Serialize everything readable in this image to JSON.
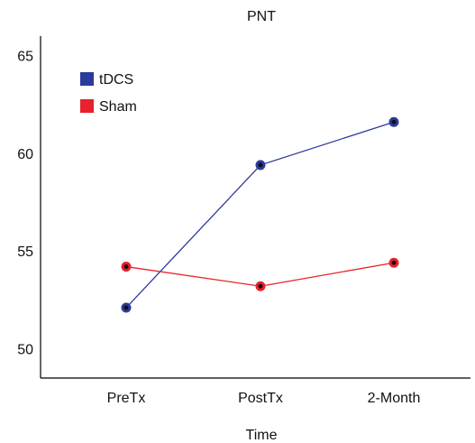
{
  "chart_data": {
    "type": "line",
    "title": "PNT",
    "xlabel": "Time",
    "ylabel": "",
    "categories": [
      "PreTx",
      "PostTx",
      "2-Month"
    ],
    "ylim": [
      48.5,
      66
    ],
    "yticks": [
      50,
      55,
      60,
      65
    ],
    "grid": false,
    "legend_position": "top-left",
    "series": [
      {
        "name": "tDCS",
        "color": "#2b3a9c",
        "values": [
          52.1,
          59.4,
          61.6
        ]
      },
      {
        "name": "Sham",
        "color": "#e8212b",
        "values": [
          54.2,
          53.2,
          54.4
        ]
      }
    ]
  }
}
